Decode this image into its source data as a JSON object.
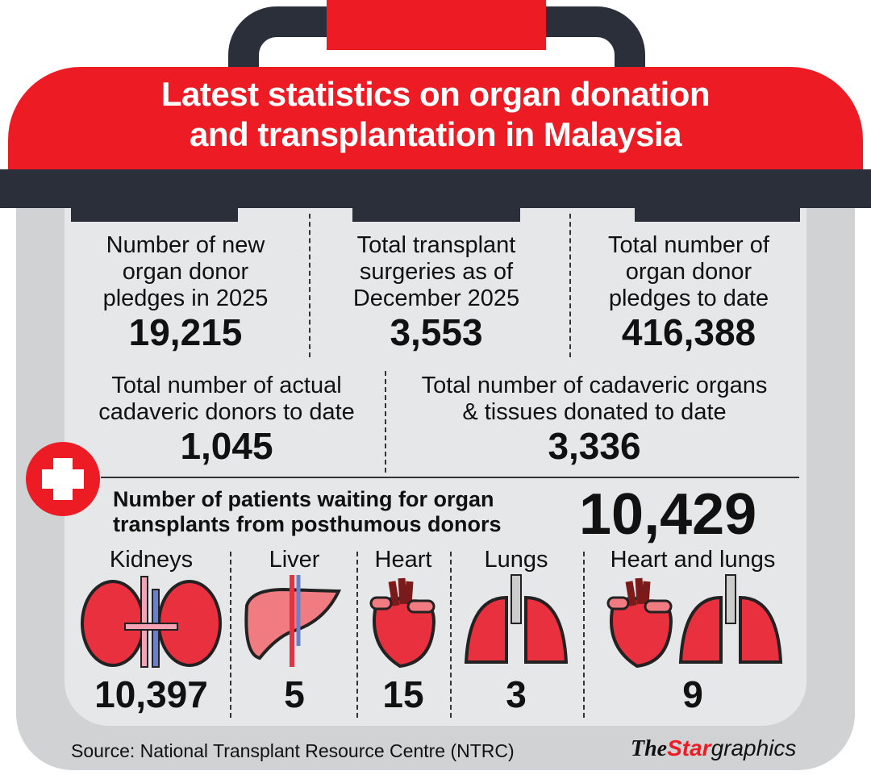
{
  "title": {
    "line1": "Latest statistics on organ donation",
    "line2": "and transplantation in Malaysia"
  },
  "stats_row1": [
    {
      "label": [
        "Number of new",
        "organ donor",
        "pledges in 2025"
      ],
      "value": "19,215"
    },
    {
      "label": [
        "Total transplant",
        "surgeries as of",
        "December 2025"
      ],
      "value": "3,553"
    },
    {
      "label": [
        "Total number of",
        "organ donor",
        "pledges to date"
      ],
      "value": "416,388"
    }
  ],
  "stats_row2": [
    {
      "label": [
        "Total number of actual",
        "cadaveric donors to date"
      ],
      "value": "1,045"
    },
    {
      "label": [
        "Total number of cadaveric organs",
        "& tissues donated to date"
      ],
      "value": "3,336"
    }
  ],
  "waiting": {
    "label": [
      "Number of patients waiting for organ",
      "transplants from posthumous donors"
    ],
    "value": "10,429"
  },
  "organs": [
    {
      "name": "Kidneys",
      "value": "10,397",
      "icon": "kidneys-icon"
    },
    {
      "name": "Liver",
      "value": "5",
      "icon": "liver-icon"
    },
    {
      "name": "Heart",
      "value": "15",
      "icon": "heart-icon"
    },
    {
      "name": "Lungs",
      "value": "3",
      "icon": "lungs-icon"
    },
    {
      "name": "Heart and lungs",
      "value": "9",
      "icon": "heart-and-lungs-icon"
    }
  ],
  "source": "Source: National Transplant Resource Centre (NTRC)",
  "logo": {
    "the": "The",
    "star": "Star",
    "graphics": "graphics"
  },
  "colors": {
    "red": "#ed1c24",
    "dark": "#2b2f3a",
    "panel": "#e6e7e8",
    "frame": "#d1d2d4"
  }
}
